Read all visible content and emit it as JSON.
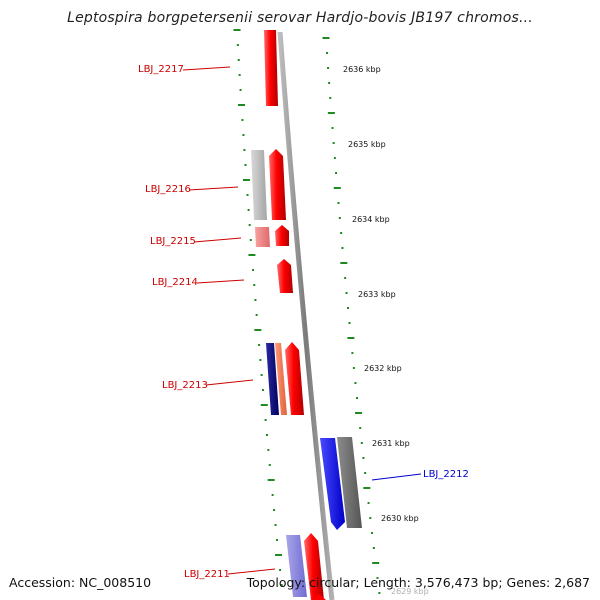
{
  "header": {
    "title": "Leptospira borgpetersenii serovar Hardjo-bovis JB197 chromos..."
  },
  "footer": {
    "accession": "Accession: NC_008510",
    "summary": "Topology: circular; Length: 3,576,473 bp; Genes: 2,687"
  },
  "colors": {
    "backbone": "#8a8a8a",
    "tick": "#1f8a1f",
    "forward_gene": "#ff0000",
    "reverse_gene": "#0000ee",
    "label_forward": "#cc0000",
    "label_reverse": "#0000cc"
  },
  "scale_labels": [
    {
      "text": "2636 kbp"
    },
    {
      "text": "2635 kbp"
    },
    {
      "text": "2634 kbp"
    },
    {
      "text": "2633 kbp"
    },
    {
      "text": "2632 kbp"
    },
    {
      "text": "2631 kbp"
    },
    {
      "text": "2630 kbp"
    },
    {
      "text": "2629 kbp"
    }
  ],
  "gene_labels": [
    {
      "text": "LBJ_2217",
      "strand": "forward"
    },
    {
      "text": "LBJ_2216",
      "strand": "forward"
    },
    {
      "text": "LBJ_2215",
      "strand": "forward"
    },
    {
      "text": "LBJ_2214",
      "strand": "forward"
    },
    {
      "text": "LBJ_2213",
      "strand": "forward"
    },
    {
      "text": "LBJ_2212",
      "strand": "reverse"
    },
    {
      "text": "LBJ_2211",
      "strand": "forward"
    }
  ]
}
